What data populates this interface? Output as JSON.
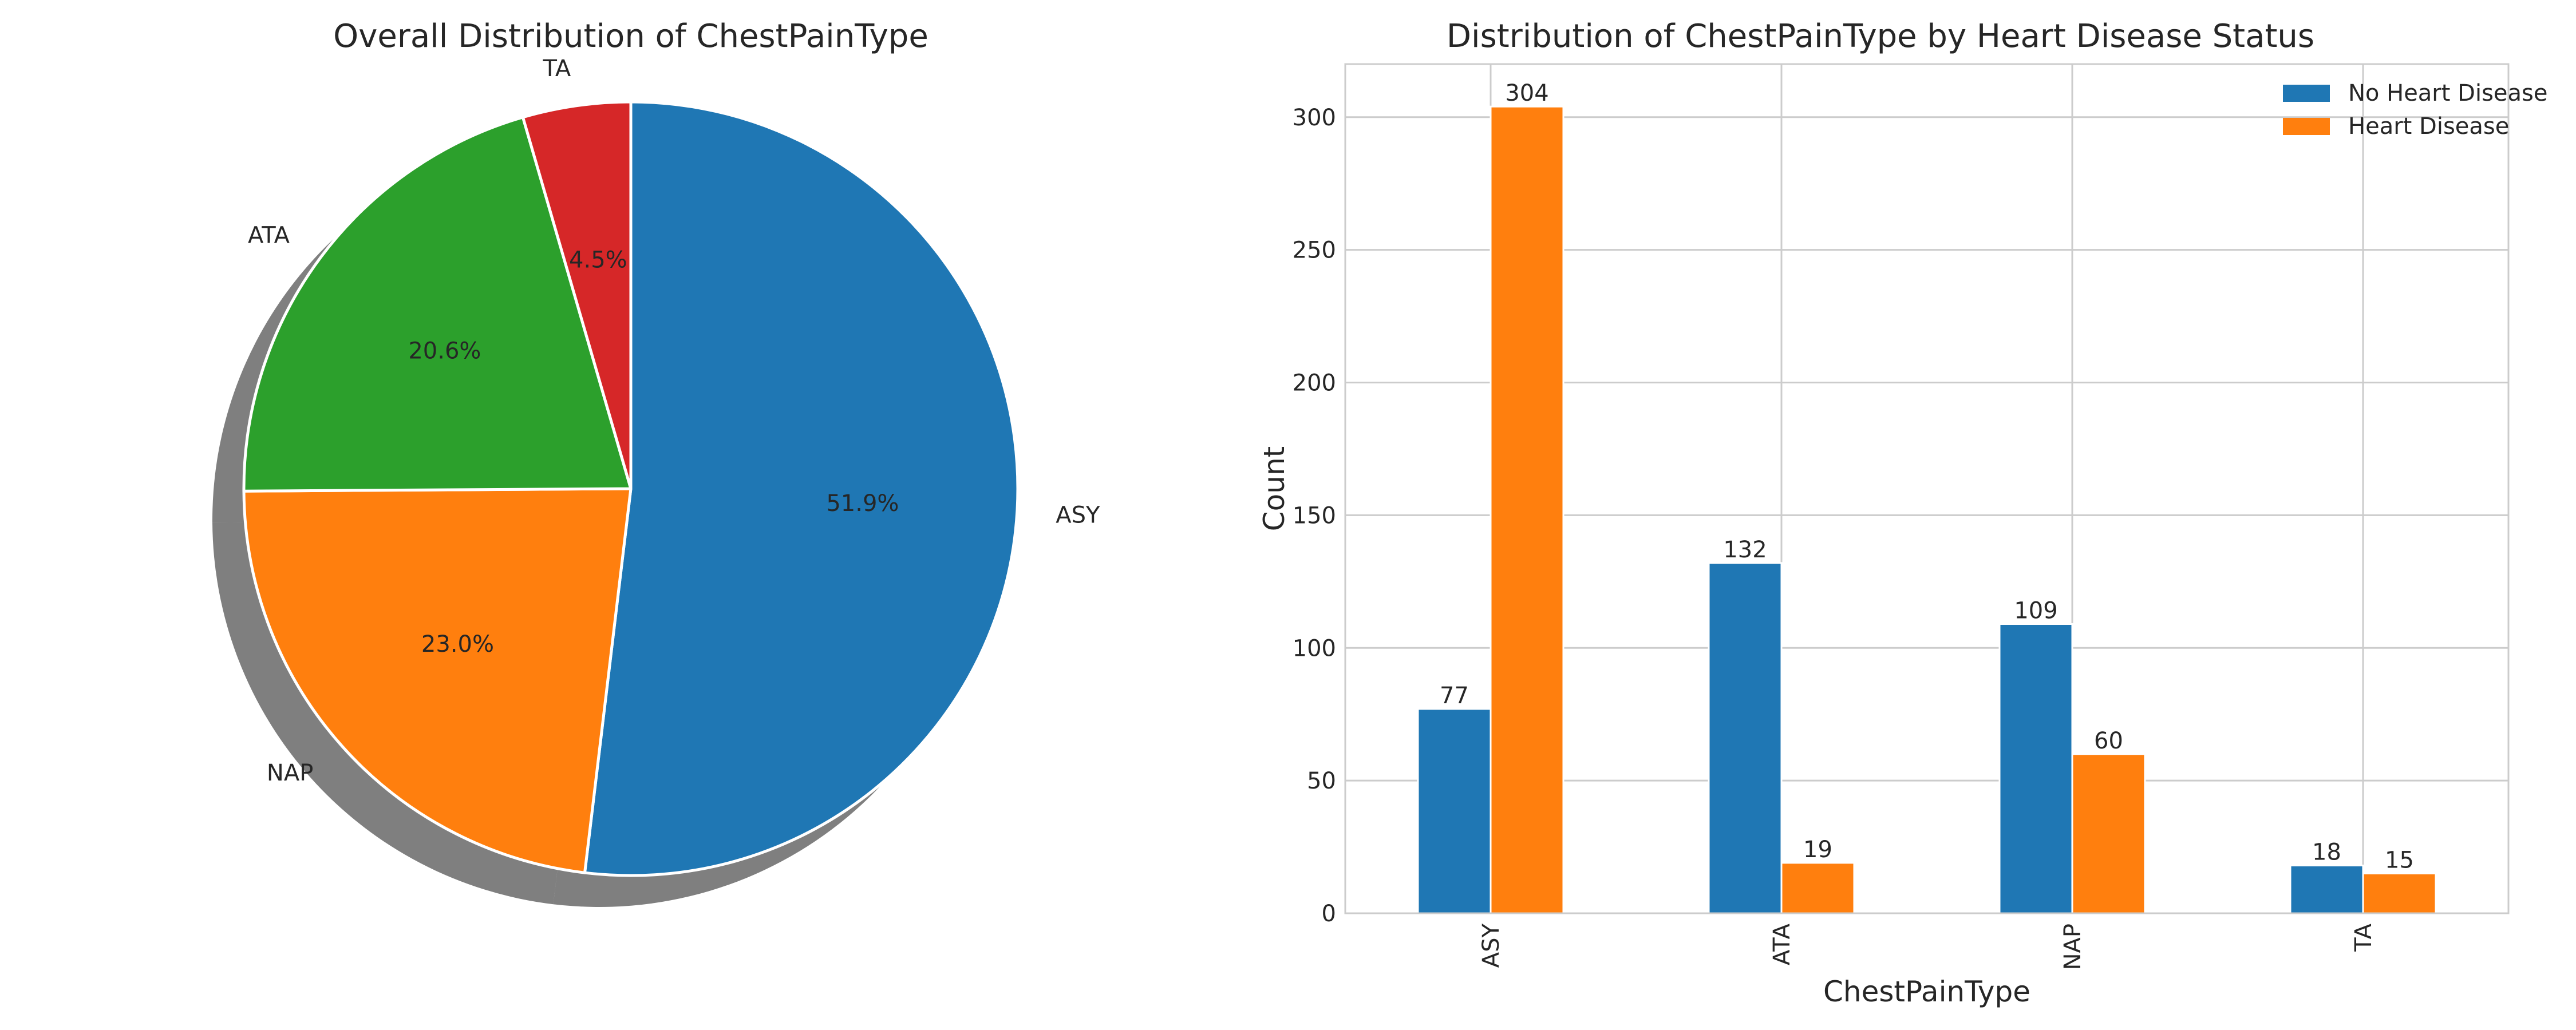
{
  "chart_data": [
    {
      "type": "pie",
      "title": "Overall Distribution of ChestPainType",
      "slices": [
        {
          "label": "ASY",
          "value": 51.9,
          "pct_label": "51.9%",
          "color": "#1f77b4"
        },
        {
          "label": "NAP",
          "value": 23.0,
          "pct_label": "23.0%",
          "color": "#ff7f0e"
        },
        {
          "label": "ATA",
          "value": 20.6,
          "pct_label": "20.6%",
          "color": "#2ca02c"
        },
        {
          "label": "TA",
          "value": 4.5,
          "pct_label": "4.5%",
          "color": "#d62728"
        }
      ],
      "start_angle_deg": 90,
      "direction": "clockwise",
      "shadow": true
    },
    {
      "type": "bar",
      "title": "Distribution of ChestPainType by Heart Disease Status",
      "xlabel": "ChestPainType",
      "ylabel": "Count",
      "categories": [
        "ASY",
        "ATA",
        "NAP",
        "TA"
      ],
      "series": [
        {
          "name": "No Heart Disease",
          "values": [
            77,
            132,
            109,
            18
          ],
          "color": "#1f77b4"
        },
        {
          "name": "Heart Disease",
          "values": [
            304,
            19,
            60,
            15
          ],
          "color": "#ff7f0e"
        }
      ],
      "ylim": [
        0,
        320
      ],
      "yticks": [
        0,
        50,
        100,
        150,
        200,
        250,
        300
      ],
      "grid": true,
      "legend": "top-right",
      "xtick_rotation": 90
    }
  ]
}
